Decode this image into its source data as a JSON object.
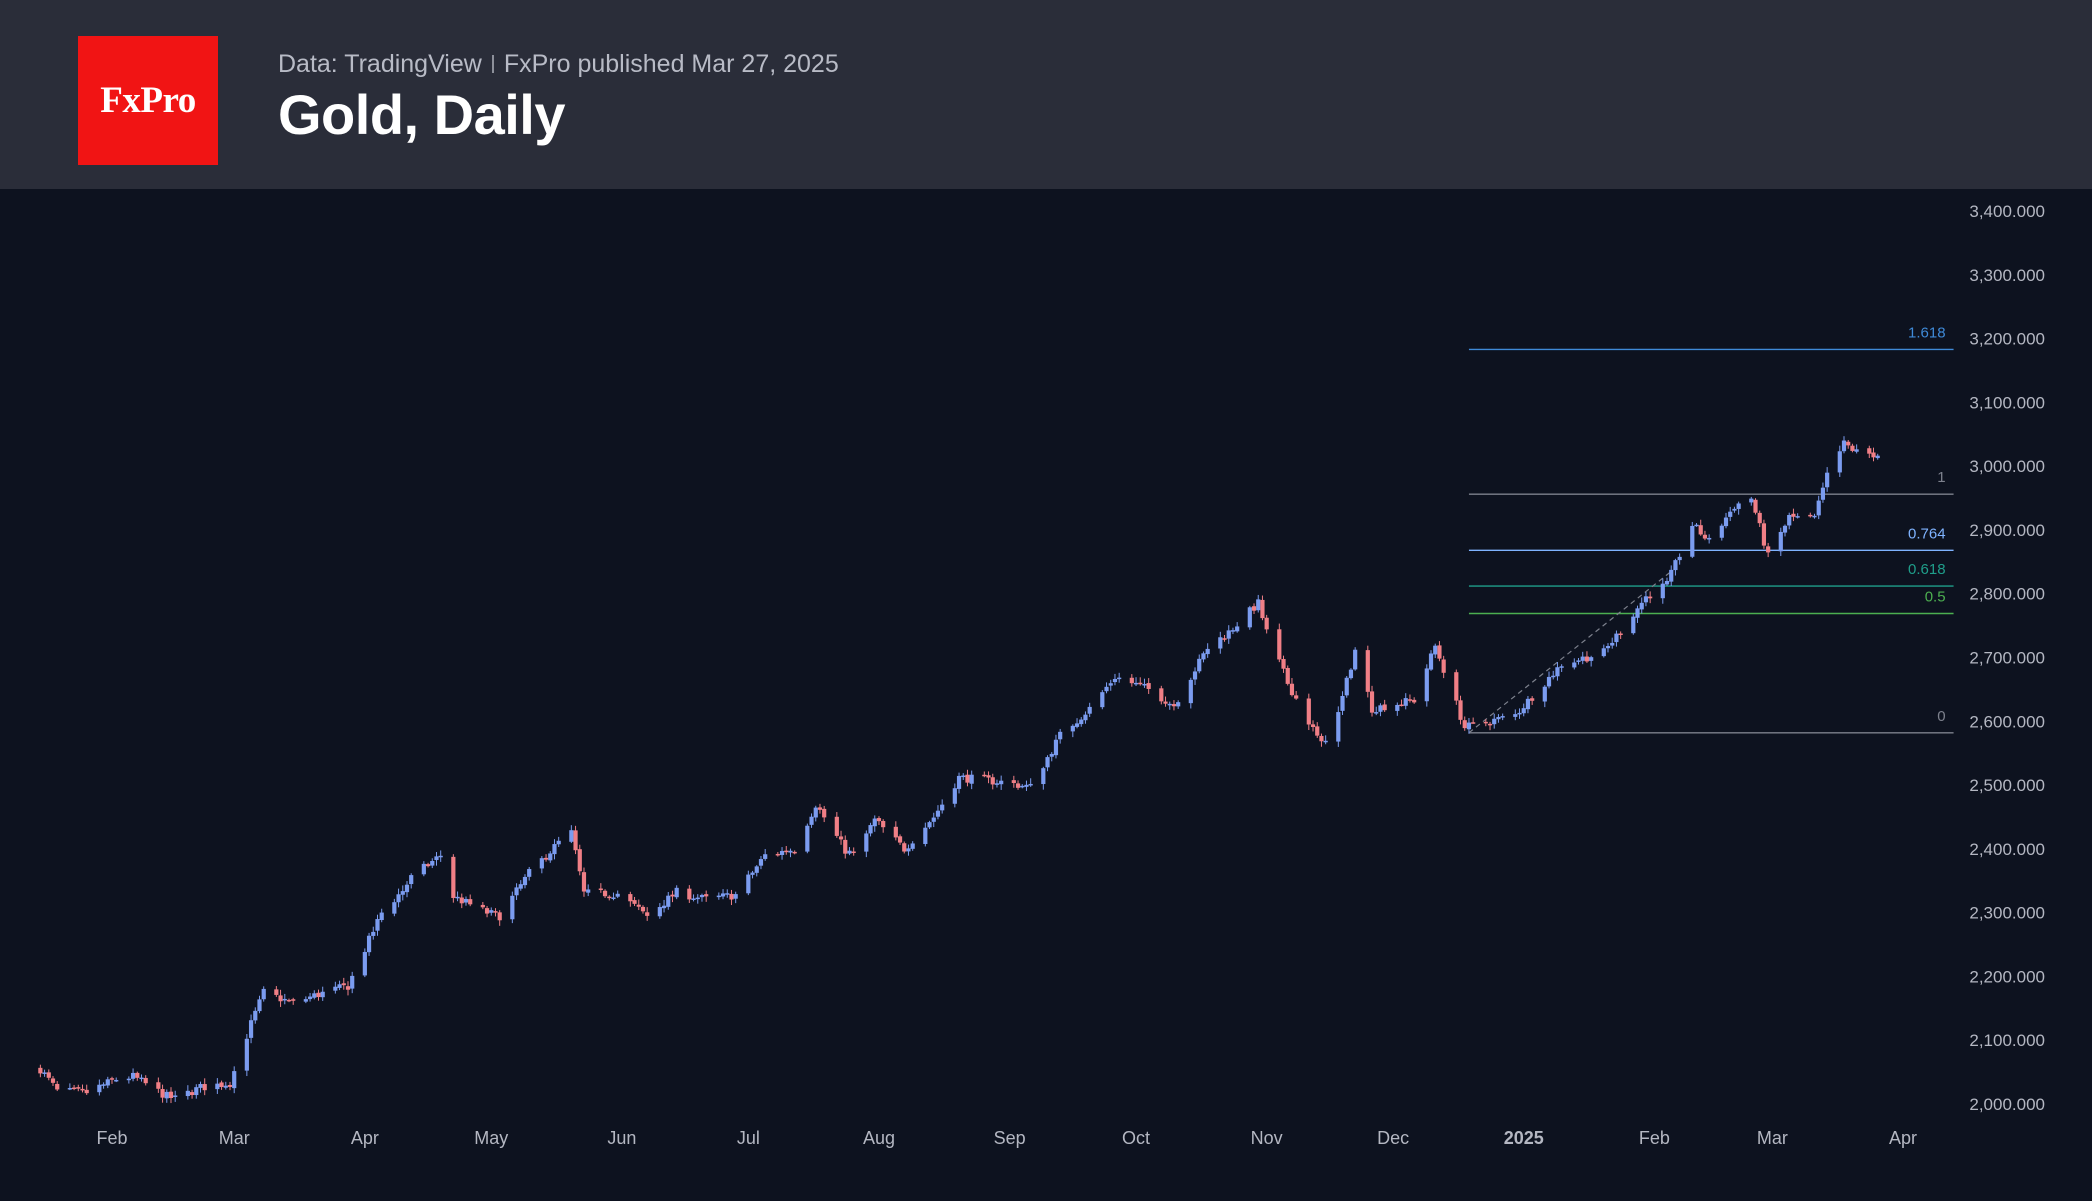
{
  "header": {
    "logo_text": "FxPro",
    "source": "Data: TradingView",
    "published": "FxPro published Mar 27, 2025",
    "title": "Gold, Daily"
  },
  "colors": {
    "background": "#0d121f",
    "header_bg": "#2a2d39",
    "logo_bg": "#f11414",
    "up_candle": "#7b9cf0",
    "down_candle": "#f07f86",
    "axis_text": "#b4b7c2"
  },
  "chart_data": {
    "type": "candlestick",
    "title": "Gold, Daily",
    "ylim": [
      1975,
      3425
    ],
    "y_ticks": [
      2000,
      2100,
      2200,
      2300,
      2400,
      2500,
      2600,
      2700,
      2800,
      2900,
      3000,
      3100,
      3200,
      3300,
      3400
    ],
    "y_tick_labels": [
      "2,000.000",
      "2,100.000",
      "2,200.000",
      "2,300.000",
      "2,400.000",
      "2,500.000",
      "2,600.000",
      "2,700.000",
      "2,800.000",
      "2,900.000",
      "3,000.000",
      "3,100.000",
      "3,200.000",
      "3,300.000",
      "3,400.000"
    ],
    "x_ticks": [
      "2024-02-01",
      "2024-03-01",
      "2024-04-01",
      "2024-05-01",
      "2024-06-01",
      "2024-07-01",
      "2024-08-01",
      "2024-09-01",
      "2024-10-01",
      "2024-11-01",
      "2024-12-01",
      "2025-01-01",
      "2025-02-01",
      "2025-03-01",
      "2025-04-01"
    ],
    "x_tick_labels": [
      "Feb",
      "Mar",
      "Apr",
      "May",
      "Jun",
      "Jul",
      "Aug",
      "Sep",
      "Oct",
      "Nov",
      "Dec",
      "2025",
      "Feb",
      "Mar",
      "Apr"
    ],
    "x_range": [
      "2024-01-15",
      "2025-04-20"
    ],
    "close_path": [
      [
        "2024-01-15",
        2055
      ],
      [
        "2024-01-19",
        2020
      ],
      [
        "2024-01-26",
        2018
      ],
      [
        "2024-02-02",
        2039
      ],
      [
        "2024-02-06",
        2043
      ],
      [
        "2024-02-14",
        2012
      ],
      [
        "2024-02-16",
        2008
      ],
      [
        "2024-02-22",
        2026
      ],
      [
        "2024-02-29",
        2033
      ],
      [
        "2024-03-05",
        2126
      ],
      [
        "2024-03-08",
        2175
      ],
      [
        "2024-03-15",
        2158
      ],
      [
        "2024-03-20",
        2170
      ],
      [
        "2024-03-28",
        2185
      ],
      [
        "2024-04-05",
        2300
      ],
      [
        "2024-04-10",
        2335
      ],
      [
        "2024-04-12",
        2355
      ],
      [
        "2024-04-19",
        2390
      ],
      [
        "2024-04-22",
        2325
      ],
      [
        "2024-04-30",
        2300
      ],
      [
        "2024-05-03",
        2295
      ],
      [
        "2024-05-10",
        2362
      ],
      [
        "2024-05-17",
        2410
      ],
      [
        "2024-05-20",
        2425
      ],
      [
        "2024-05-23",
        2330
      ],
      [
        "2024-05-31",
        2330
      ],
      [
        "2024-06-07",
        2295
      ],
      [
        "2024-06-14",
        2332
      ],
      [
        "2024-06-21",
        2321
      ],
      [
        "2024-06-28",
        2328
      ],
      [
        "2024-07-05",
        2390
      ],
      [
        "2024-07-12",
        2400
      ],
      [
        "2024-07-17",
        2470
      ],
      [
        "2024-07-24",
        2398
      ],
      [
        "2024-07-26",
        2390
      ],
      [
        "2024-07-31",
        2445
      ],
      [
        "2024-08-07",
        2400
      ],
      [
        "2024-08-14",
        2450
      ],
      [
        "2024-08-20",
        2512
      ],
      [
        "2024-08-30",
        2505
      ],
      [
        "2024-09-06",
        2497
      ],
      [
        "2024-09-13",
        2578
      ],
      [
        "2024-09-20",
        2620
      ],
      [
        "2024-09-26",
        2670
      ],
      [
        "2024-10-04",
        2650
      ],
      [
        "2024-10-10",
        2625
      ],
      [
        "2024-10-18",
        2715
      ],
      [
        "2024-10-23",
        2740
      ],
      [
        "2024-10-30",
        2785
      ],
      [
        "2024-11-01",
        2740
      ],
      [
        "2024-11-06",
        2660
      ],
      [
        "2024-11-14",
        2563
      ],
      [
        "2024-11-18",
        2612
      ],
      [
        "2024-11-22",
        2712
      ],
      [
        "2024-11-26",
        2620
      ],
      [
        "2024-12-06",
        2633
      ],
      [
        "2024-12-11",
        2718
      ],
      [
        "2024-12-18",
        2590
      ],
      [
        "2024-12-30",
        2610
      ],
      [
        "2025-01-10",
        2690
      ],
      [
        "2025-01-20",
        2708
      ],
      [
        "2025-01-30",
        2795
      ],
      [
        "2025-02-04",
        2815
      ],
      [
        "2025-02-10",
        2908
      ],
      [
        "2025-02-14",
        2882
      ],
      [
        "2025-02-20",
        2938
      ],
      [
        "2025-02-24",
        2950
      ],
      [
        "2025-02-28",
        2858
      ],
      [
        "2025-03-05",
        2920
      ],
      [
        "2025-03-11",
        2918
      ],
      [
        "2025-03-14",
        2985
      ],
      [
        "2025-03-18",
        3035
      ],
      [
        "2025-03-21",
        3022
      ],
      [
        "2025-03-26",
        3018
      ]
    ],
    "fib_levels": [
      {
        "label": "1.618",
        "value": 3183,
        "color": "#3f8ad8"
      },
      {
        "label": "1",
        "value": 2956,
        "color": "#7d818d"
      },
      {
        "label": "0.764",
        "value": 2868,
        "color": "#7fb3ff"
      },
      {
        "label": "0.618",
        "value": 2812,
        "color": "#1f9e8a"
      },
      {
        "label": "0.5",
        "value": 2769,
        "color": "#4caf50"
      },
      {
        "label": "0",
        "value": 2582,
        "color": "#7d818d"
      }
    ],
    "fib_range": [
      "2024-12-19",
      "2025-04-13"
    ],
    "trend_line": [
      [
        "2024-12-19",
        2582
      ],
      [
        "2025-02-05",
        2835
      ]
    ]
  }
}
